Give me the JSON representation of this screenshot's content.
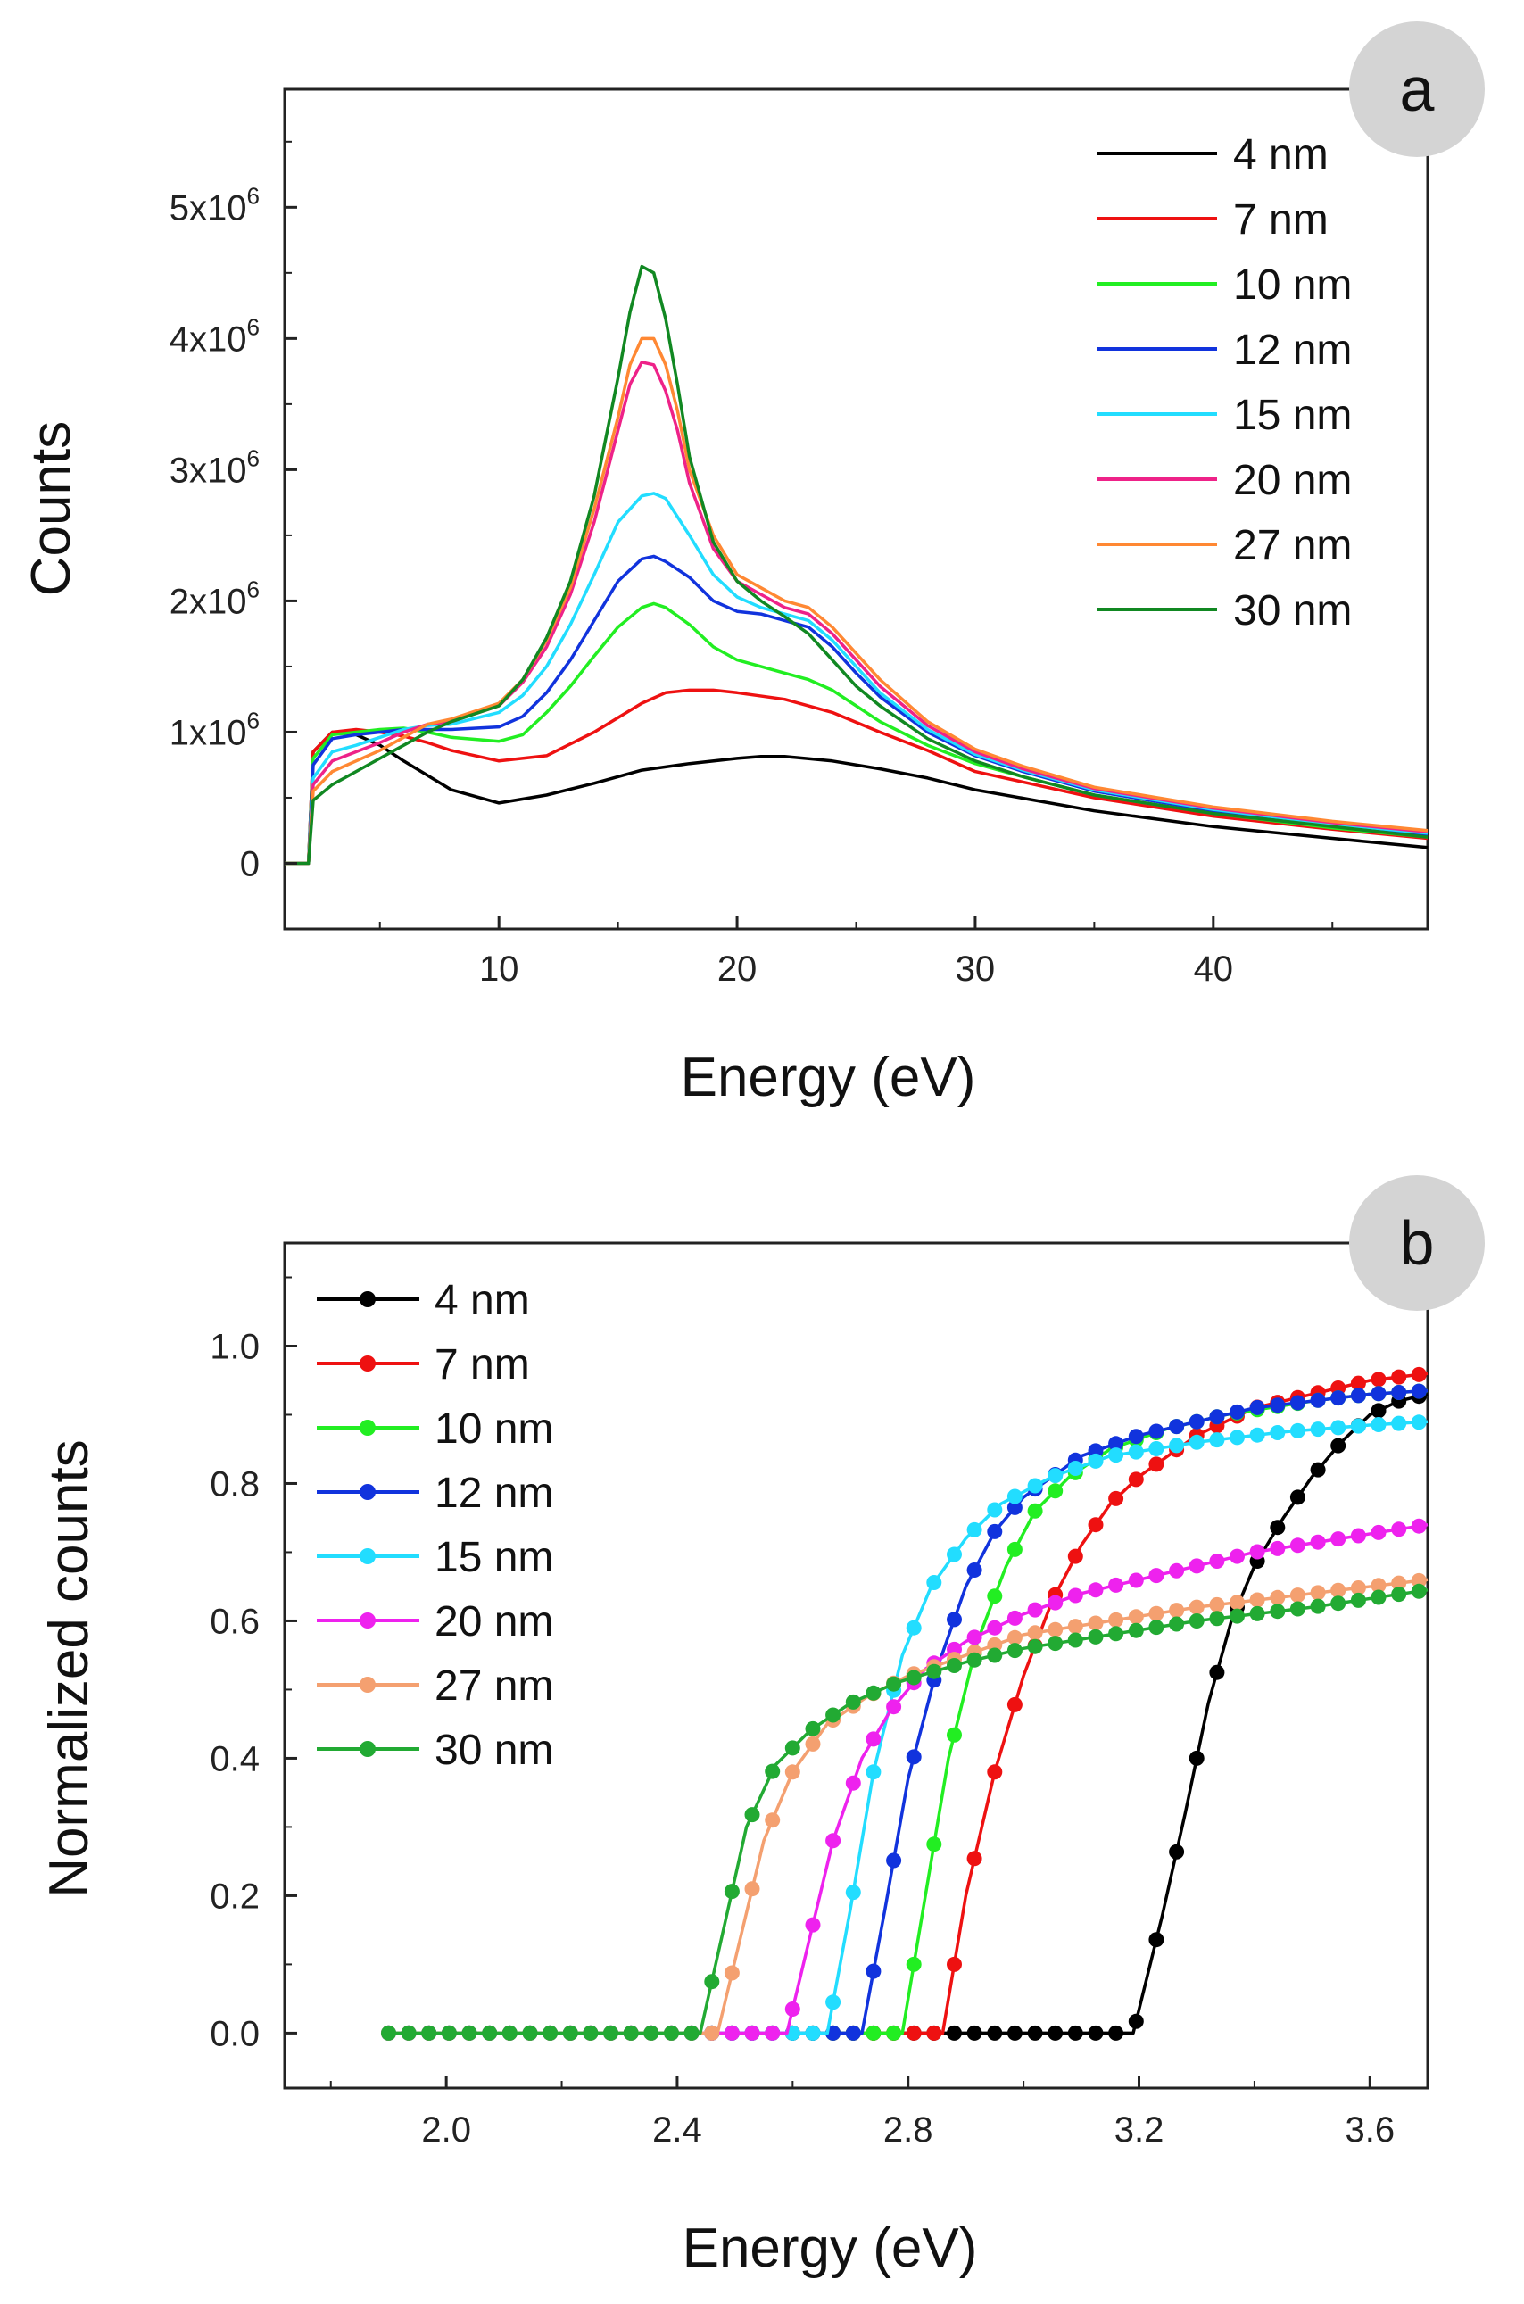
{
  "chart_data": [
    {
      "panel": "a",
      "type": "line",
      "xlabel": "Energy (eV)",
      "ylabel": "Counts",
      "xlim": [
        1,
        49
      ],
      "ylim": [
        -500000,
        5900000
      ],
      "xticks": [
        {
          "value": 10,
          "label": "10"
        },
        {
          "value": 20,
          "label": "20"
        },
        {
          "value": 30,
          "label": "30"
        },
        {
          "value": 40,
          "label": "40"
        }
      ],
      "yticks": [
        {
          "value": 0,
          "base": "0",
          "exp": ""
        },
        {
          "value": 1000000,
          "base": "1x10",
          "exp": "6"
        },
        {
          "value": 2000000,
          "base": "2x10",
          "exp": "6"
        },
        {
          "value": 3000000,
          "base": "3x10",
          "exp": "6"
        },
        {
          "value": 4000000,
          "base": "4x10",
          "exp": "6"
        },
        {
          "value": 5000000,
          "base": "5x10",
          "exp": "6"
        }
      ],
      "legend_position": "top-right",
      "series": [
        {
          "name": "4 nm",
          "color": "#000000",
          "x": [
            1,
            2,
            2.2,
            3,
            4,
            5,
            6,
            8,
            10,
            12,
            14,
            16,
            18,
            20,
            21,
            22,
            24,
            26,
            28,
            30,
            35,
            40,
            45,
            49
          ],
          "y": [
            0,
            0,
            850000,
            1000000,
            980000,
            900000,
            780000,
            560000,
            460000,
            520000,
            610000,
            710000,
            760000,
            800000,
            815000,
            815000,
            780000,
            720000,
            650000,
            560000,
            400000,
            280000,
            190000,
            120000
          ]
        },
        {
          "name": "7 nm",
          "color": "#ee1111",
          "x": [
            1,
            2,
            2.2,
            3,
            4,
            5,
            6,
            7,
            8,
            10,
            12,
            14,
            16,
            17,
            18,
            19,
            20,
            22,
            24,
            26,
            28,
            30,
            35,
            40,
            45,
            49
          ],
          "y": [
            0,
            0,
            850000,
            1000000,
            1020000,
            1000000,
            970000,
            920000,
            860000,
            780000,
            820000,
            1000000,
            1220000,
            1300000,
            1320000,
            1320000,
            1300000,
            1250000,
            1150000,
            1000000,
            860000,
            700000,
            500000,
            360000,
            260000,
            190000
          ]
        },
        {
          "name": "10 nm",
          "color": "#22ee22",
          "x": [
            1,
            2,
            2.2,
            3,
            4,
            5,
            6,
            7,
            8,
            10,
            11,
            12,
            13,
            14,
            15,
            16,
            16.5,
            17,
            18,
            19,
            20,
            21,
            22,
            23,
            24,
            25,
            26,
            28,
            30,
            32,
            35,
            40,
            45,
            49
          ],
          "y": [
            0,
            0,
            800000,
            980000,
            1000000,
            1020000,
            1030000,
            1000000,
            960000,
            930000,
            980000,
            1150000,
            1350000,
            1580000,
            1800000,
            1950000,
            1980000,
            1950000,
            1820000,
            1650000,
            1550000,
            1500000,
            1450000,
            1400000,
            1320000,
            1200000,
            1080000,
            900000,
            760000,
            660000,
            520000,
            380000,
            270000,
            200000
          ]
        },
        {
          "name": "12 nm",
          "color": "#1133dd",
          "x": [
            1,
            2,
            2.2,
            3,
            4,
            5,
            6,
            7,
            8,
            10,
            11,
            12,
            13,
            14,
            15,
            16,
            16.5,
            17,
            18,
            19,
            20,
            21,
            22,
            23,
            24,
            25,
            26,
            28,
            30,
            32,
            35,
            40,
            45,
            49
          ],
          "y": [
            0,
            0,
            750000,
            950000,
            980000,
            1000000,
            1020000,
            1020000,
            1020000,
            1040000,
            1120000,
            1300000,
            1550000,
            1850000,
            2150000,
            2320000,
            2340000,
            2300000,
            2180000,
            2000000,
            1920000,
            1900000,
            1850000,
            1800000,
            1650000,
            1450000,
            1270000,
            1000000,
            820000,
            700000,
            550000,
            400000,
            290000,
            220000
          ]
        },
        {
          "name": "15 nm",
          "color": "#22ddff",
          "x": [
            1,
            2,
            2.2,
            3,
            4,
            5,
            6,
            7,
            8,
            10,
            11,
            12,
            13,
            14,
            15,
            16,
            16.5,
            17,
            18,
            19,
            20,
            21,
            22,
            23,
            24,
            25,
            26,
            28,
            30,
            32,
            35,
            40,
            45,
            49
          ],
          "y": [
            0,
            0,
            650000,
            850000,
            900000,
            960000,
            1020000,
            1050000,
            1060000,
            1150000,
            1280000,
            1500000,
            1820000,
            2200000,
            2600000,
            2800000,
            2820000,
            2780000,
            2500000,
            2200000,
            2030000,
            1950000,
            1900000,
            1850000,
            1700000,
            1500000,
            1300000,
            1020000,
            830000,
            710000,
            560000,
            410000,
            300000,
            230000
          ]
        },
        {
          "name": "20 nm",
          "color": "#ee2288",
          "x": [
            1,
            2,
            2.2,
            3,
            4,
            5,
            6,
            7,
            8,
            10,
            11,
            12,
            13,
            14,
            15,
            15.5,
            16,
            16.5,
            17,
            17.5,
            18,
            19,
            20,
            21,
            22,
            23,
            24,
            25,
            26,
            28,
            30,
            32,
            35,
            40,
            45,
            49
          ],
          "y": [
            0,
            0,
            600000,
            780000,
            850000,
            920000,
            1000000,
            1060000,
            1080000,
            1200000,
            1380000,
            1650000,
            2050000,
            2600000,
            3300000,
            3650000,
            3820000,
            3800000,
            3600000,
            3300000,
            2900000,
            2400000,
            2150000,
            2050000,
            1950000,
            1900000,
            1750000,
            1550000,
            1350000,
            1050000,
            850000,
            720000,
            570000,
            420000,
            310000,
            240000
          ]
        },
        {
          "name": "27 nm",
          "color": "#ff8833",
          "x": [
            1,
            2,
            2.2,
            3,
            4,
            5,
            6,
            7,
            8,
            10,
            11,
            12,
            13,
            14,
            15,
            15.5,
            16,
            16.5,
            17,
            17.5,
            18,
            19,
            20,
            21,
            22,
            23,
            24,
            25,
            26,
            28,
            30,
            32,
            35,
            40,
            45,
            49
          ],
          "y": [
            0,
            0,
            550000,
            700000,
            780000,
            860000,
            960000,
            1060000,
            1100000,
            1220000,
            1400000,
            1700000,
            2100000,
            2700000,
            3400000,
            3800000,
            4000000,
            4000000,
            3800000,
            3450000,
            3000000,
            2500000,
            2200000,
            2100000,
            2000000,
            1950000,
            1800000,
            1600000,
            1400000,
            1080000,
            870000,
            740000,
            580000,
            430000,
            320000,
            250000
          ]
        },
        {
          "name": "30 nm",
          "color": "#118822",
          "x": [
            1,
            2,
            2.2,
            3,
            4,
            5,
            6,
            7,
            8,
            10,
            11,
            12,
            13,
            14,
            15,
            15.5,
            16,
            16.5,
            17,
            17.5,
            18,
            19,
            20,
            21,
            22,
            23,
            24,
            25,
            26,
            28,
            30,
            32,
            35,
            40,
            45,
            49
          ],
          "y": [
            0,
            0,
            480000,
            600000,
            700000,
            800000,
            900000,
            1000000,
            1080000,
            1200000,
            1400000,
            1720000,
            2150000,
            2800000,
            3700000,
            4200000,
            4550000,
            4500000,
            4150000,
            3650000,
            3100000,
            2450000,
            2150000,
            2000000,
            1880000,
            1750000,
            1550000,
            1350000,
            1200000,
            950000,
            780000,
            660000,
            520000,
            380000,
            280000,
            200000
          ]
        }
      ]
    },
    {
      "panel": "b",
      "type": "line",
      "xlabel": "Energy (eV)",
      "ylabel": "Normalized counts",
      "xlim": [
        1.72,
        3.7
      ],
      "ylim": [
        -0.08,
        1.15
      ],
      "xticks": [
        {
          "value": 2.0,
          "label": "2.0"
        },
        {
          "value": 2.4,
          "label": "2.4"
        },
        {
          "value": 2.8,
          "label": "2.8"
        },
        {
          "value": 3.2,
          "label": "3.2"
        },
        {
          "value": 3.6,
          "label": "3.6"
        }
      ],
      "yticks": [
        {
          "value": 0.0,
          "label": "0.0"
        },
        {
          "value": 0.2,
          "label": "0.2"
        },
        {
          "value": 0.4,
          "label": "0.4"
        },
        {
          "value": 0.6,
          "label": "0.6"
        },
        {
          "value": 0.8,
          "label": "0.8"
        },
        {
          "value": 1.0,
          "label": "1.0"
        }
      ],
      "legend_position": "top-left",
      "point_spacing": 0.035,
      "x_start": 1.9,
      "x_end": 3.7,
      "series": [
        {
          "name": "4 nm",
          "color": "#000000",
          "onset": 3.19,
          "curve_x": [
            3.19,
            3.24,
            3.28,
            3.32,
            3.36,
            3.4,
            3.45,
            3.5,
            3.55,
            3.6,
            3.65,
            3.7
          ],
          "curve_y": [
            0,
            0.17,
            0.32,
            0.48,
            0.6,
            0.68,
            0.75,
            0.81,
            0.86,
            0.9,
            0.92,
            0.93
          ]
        },
        {
          "name": "7 nm",
          "color": "#ee1111",
          "onset": 2.86,
          "curve_x": [
            2.86,
            2.9,
            2.95,
            3.0,
            3.05,
            3.1,
            3.15,
            3.2,
            3.3,
            3.4,
            3.5,
            3.6,
            3.7
          ],
          "curve_y": [
            0,
            0.2,
            0.38,
            0.52,
            0.63,
            0.71,
            0.77,
            0.81,
            0.87,
            0.91,
            0.93,
            0.95,
            0.96
          ]
        },
        {
          "name": "10 nm",
          "color": "#22ee22",
          "onset": 2.79,
          "curve_x": [
            2.79,
            2.83,
            2.87,
            2.92,
            2.97,
            3.02,
            3.08,
            3.15,
            3.25,
            3.35,
            3.5,
            3.6,
            3.7
          ],
          "curve_y": [
            0,
            0.2,
            0.4,
            0.57,
            0.68,
            0.76,
            0.81,
            0.85,
            0.88,
            0.9,
            0.92,
            0.93,
            0.935
          ]
        },
        {
          "name": "12 nm",
          "color": "#1133dd",
          "onset": 2.72,
          "curve_x": [
            2.72,
            2.76,
            2.8,
            2.85,
            2.9,
            2.95,
            3.0,
            3.1,
            3.2,
            3.3,
            3.4,
            3.5,
            3.6,
            3.7
          ],
          "curve_y": [
            0,
            0.18,
            0.37,
            0.53,
            0.65,
            0.73,
            0.78,
            0.84,
            0.87,
            0.89,
            0.91,
            0.92,
            0.93,
            0.935
          ]
        },
        {
          "name": "15 nm",
          "color": "#22ddff",
          "onset": 2.66,
          "curve_x": [
            2.66,
            2.7,
            2.74,
            2.79,
            2.84,
            2.9,
            2.96,
            3.05,
            3.15,
            3.3,
            3.45,
            3.6,
            3.7
          ],
          "curve_y": [
            0,
            0.18,
            0.38,
            0.55,
            0.65,
            0.72,
            0.77,
            0.81,
            0.84,
            0.86,
            0.875,
            0.885,
            0.89
          ]
        },
        {
          "name": "20 nm",
          "color": "#ee22ee",
          "onset": 2.59,
          "curve_x": [
            2.59,
            2.63,
            2.67,
            2.72,
            2.77,
            2.83,
            2.9,
            3.0,
            3.1,
            3.25,
            3.4,
            3.55,
            3.7
          ],
          "curve_y": [
            0,
            0.14,
            0.28,
            0.4,
            0.47,
            0.53,
            0.57,
            0.61,
            0.64,
            0.67,
            0.7,
            0.72,
            0.74
          ]
        },
        {
          "name": "27 nm",
          "color": "#f4a070",
          "onset": 2.47,
          "curve_x": [
            2.47,
            2.51,
            2.55,
            2.6,
            2.66,
            2.73,
            2.8,
            2.9,
            3.0,
            3.15,
            3.3,
            3.5,
            3.7
          ],
          "curve_y": [
            0,
            0.14,
            0.28,
            0.38,
            0.45,
            0.49,
            0.52,
            0.55,
            0.58,
            0.6,
            0.62,
            0.64,
            0.66
          ]
        },
        {
          "name": "30 nm",
          "color": "#22aa33",
          "onset": 2.44,
          "curve_x": [
            2.44,
            2.48,
            2.52,
            2.57,
            2.63,
            2.7,
            2.78,
            2.9,
            3.0,
            3.15,
            3.3,
            3.5,
            3.7
          ],
          "curve_y": [
            0,
            0.15,
            0.3,
            0.39,
            0.44,
            0.48,
            0.51,
            0.54,
            0.56,
            0.58,
            0.6,
            0.62,
            0.645
          ]
        }
      ]
    }
  ]
}
